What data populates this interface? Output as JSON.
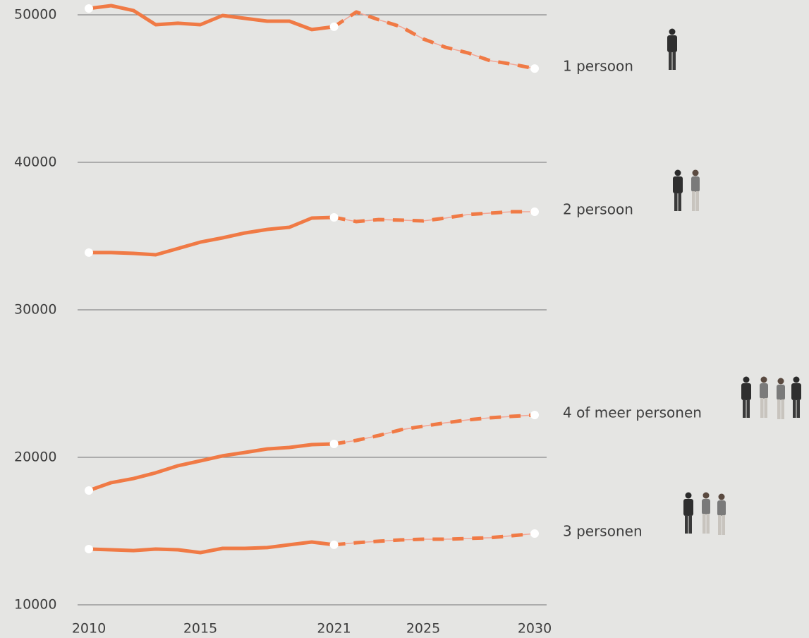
{
  "chart_data": {
    "type": "line",
    "x": [
      2010,
      2011,
      2012,
      2013,
      2014,
      2015,
      2016,
      2017,
      2018,
      2019,
      2020,
      2021,
      2022,
      2023,
      2024,
      2025,
      2026,
      2027,
      2028,
      2029,
      2030
    ],
    "xlim": [
      2010,
      2030
    ],
    "xticks": [
      2010,
      2015,
      2021,
      2025,
      2030
    ],
    "ylim": [
      10000,
      50500
    ],
    "yticks": [
      10000,
      20000,
      30000,
      40000,
      50000
    ],
    "grid": true,
    "projection_style": "dashed",
    "series": [
      {
        "name": "1 persoon",
        "color": "#f07a45",
        "values": [
          50430,
          50620,
          50290,
          49330,
          49430,
          49330,
          49950,
          49760,
          49570,
          49570,
          49000,
          49190,
          null,
          null,
          null,
          null,
          null,
          null,
          null,
          null,
          null
        ],
        "projection": [
          null,
          null,
          null,
          null,
          null,
          null,
          null,
          null,
          null,
          null,
          null,
          49190,
          50190,
          49670,
          49190,
          48370,
          47800,
          47420,
          46890,
          46650,
          46360
        ]
      },
      {
        "name": "2 persoon",
        "color": "#f07a45",
        "values": [
          33880,
          33880,
          33830,
          33730,
          34160,
          34590,
          34880,
          35210,
          35450,
          35600,
          36220,
          36270,
          null,
          null,
          null,
          null,
          null,
          null,
          null,
          null,
          null
        ],
        "projection": [
          null,
          null,
          null,
          null,
          null,
          null,
          null,
          null,
          null,
          null,
          null,
          36270,
          35980,
          36120,
          36080,
          36030,
          36220,
          36460,
          36560,
          36650,
          36650
        ]
      },
      {
        "name": "4 of meer personen",
        "color": "#f07a45",
        "values": [
          17750,
          18280,
          18560,
          18950,
          19430,
          19760,
          20100,
          20330,
          20570,
          20670,
          20860,
          20910,
          null,
          null,
          null,
          null,
          null,
          null,
          null,
          null,
          null
        ],
        "projection": [
          null,
          null,
          null,
          null,
          null,
          null,
          null,
          null,
          null,
          null,
          null,
          20910,
          21150,
          21480,
          21870,
          22110,
          22340,
          22540,
          22680,
          22780,
          22870
        ]
      },
      {
        "name": "3 personen",
        "color": "#f07a45",
        "values": [
          13780,
          13730,
          13680,
          13780,
          13730,
          13540,
          13830,
          13830,
          13880,
          14070,
          14260,
          14070,
          null,
          null,
          null,
          null,
          null,
          null,
          null,
          null,
          null
        ],
        "projection": [
          null,
          null,
          null,
          null,
          null,
          null,
          null,
          null,
          null,
          null,
          null,
          14070,
          14210,
          14310,
          14400,
          14450,
          14450,
          14500,
          14550,
          14690,
          14830
        ]
      }
    ]
  }
}
